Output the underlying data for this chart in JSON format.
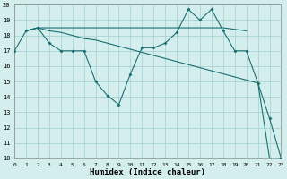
{
  "xlabel": "Humidex (Indice chaleur)",
  "background_color": "#d4eeee",
  "grid_color": "#aad4d4",
  "line_color": "#1a7070",
  "xlim": [
    0,
    23
  ],
  "ylim": [
    10,
    20
  ],
  "xticks": [
    0,
    1,
    2,
    3,
    4,
    5,
    6,
    7,
    8,
    9,
    10,
    11,
    12,
    13,
    14,
    15,
    16,
    17,
    18,
    19,
    20,
    21,
    22,
    23
  ],
  "yticks": [
    10,
    11,
    12,
    13,
    14,
    15,
    16,
    17,
    18,
    19,
    20
  ],
  "series1_x": [
    0,
    1,
    2,
    3,
    4,
    5,
    6,
    7,
    8,
    9,
    10,
    11,
    12,
    13,
    14,
    15,
    16,
    17,
    18,
    19,
    20,
    21,
    22,
    23
  ],
  "series1_y": [
    17,
    18.3,
    18.5,
    17.5,
    17,
    17,
    17,
    15,
    14.1,
    13.5,
    15.5,
    17.2,
    17.2,
    17.5,
    18.2,
    19.7,
    19,
    19.7,
    18.3,
    17,
    17,
    14.9,
    12.6,
    10
  ],
  "series2_x": [
    1,
    2,
    3,
    4,
    5,
    6,
    7,
    8,
    9,
    10,
    11,
    12,
    13,
    14,
    15,
    16,
    17,
    18,
    20
  ],
  "series2_y": [
    18.3,
    18.5,
    18.5,
    18.5,
    18.5,
    18.5,
    18.5,
    18.5,
    18.5,
    18.5,
    18.5,
    18.5,
    18.5,
    18.5,
    18.5,
    18.5,
    18.5,
    18.5,
    18.3
  ],
  "series3_x": [
    1,
    2,
    3,
    4,
    5,
    6,
    7,
    8,
    9,
    10,
    11,
    12,
    13,
    14,
    15,
    16,
    17,
    18,
    19,
    20,
    21,
    22,
    23
  ],
  "series3_y": [
    18.3,
    18.5,
    18.3,
    18.2,
    18.0,
    17.8,
    17.7,
    17.5,
    17.3,
    17.1,
    16.9,
    16.7,
    16.5,
    16.3,
    16.1,
    15.9,
    15.7,
    15.5,
    15.3,
    15.1,
    14.9,
    10,
    10
  ]
}
